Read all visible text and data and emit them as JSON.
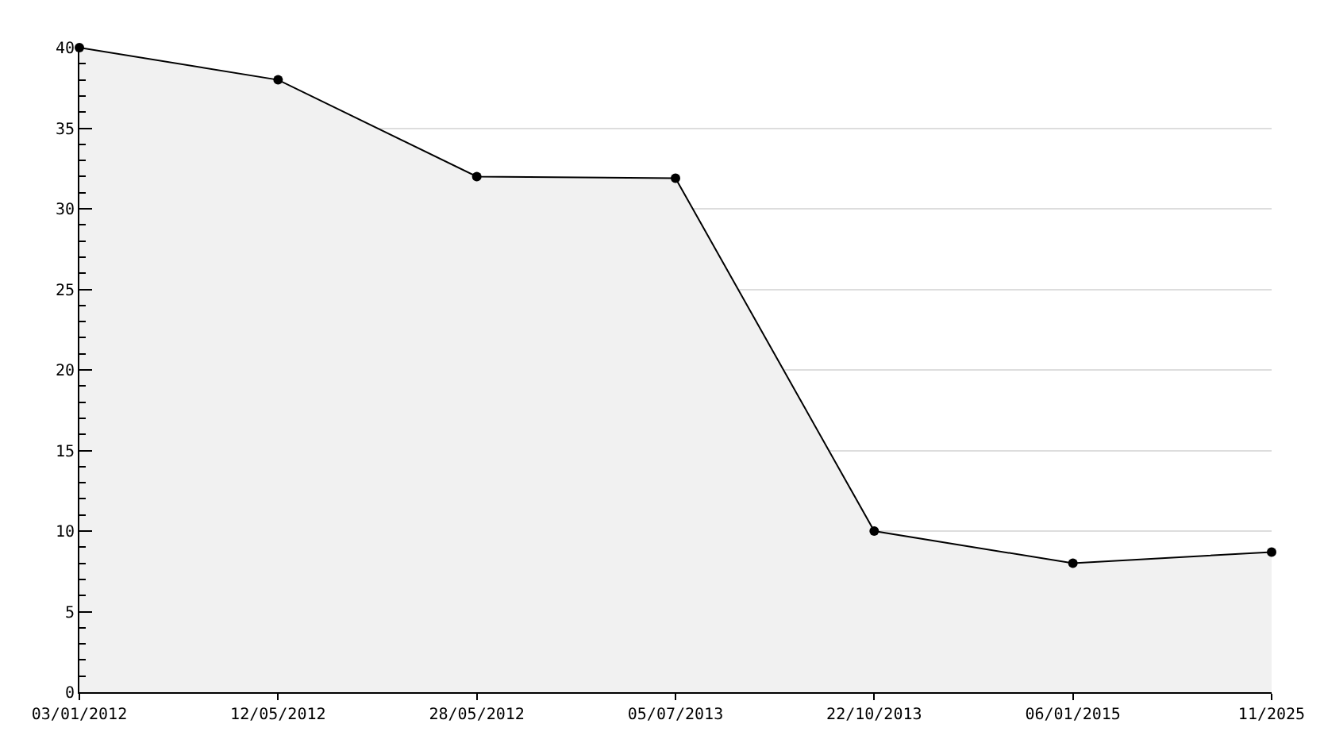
{
  "chart_data": {
    "type": "area",
    "categories": [
      "03/01/2012",
      "12/05/2012",
      "28/05/2012",
      "05/07/2013",
      "22/10/2013",
      "06/01/2015",
      "11/2025"
    ],
    "values": [
      40,
      38,
      32,
      31.9,
      10,
      8,
      8.7
    ],
    "color": "#000000",
    "ylim": [
      0,
      40
    ],
    "yticks": [
      0,
      5,
      10,
      15,
      20,
      25,
      30,
      35,
      40
    ],
    "grid": "y",
    "marker": "circle"
  }
}
